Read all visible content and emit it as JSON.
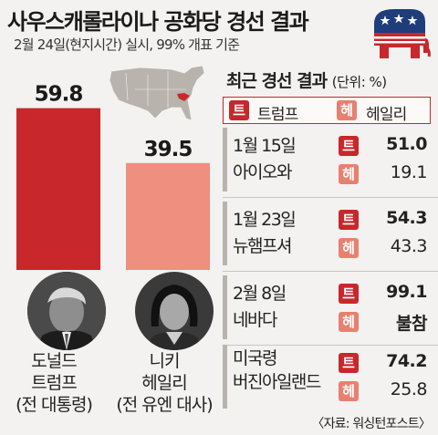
{
  "header": {
    "title": "사우스캐롤라이나 공화당 경선 결과",
    "subtitle": "2월 24일(현지시간) 실시, 99% 개표 기준",
    "logo_icon": "republican-elephant-icon"
  },
  "chart_data": {
    "type": "bar",
    "categories": [
      "도널드 트럼프",
      "니키 헤일리"
    ],
    "values": [
      59.8,
      39.5
    ],
    "value_labels": [
      "59.8",
      "39.5"
    ],
    "colors": [
      "#c8272c",
      "#ee8f7f"
    ],
    "ylim": [
      0,
      60
    ]
  },
  "map": {
    "icon": "us-map-south-carolina-icon",
    "highlight_color": "#c8272c"
  },
  "candidates": [
    {
      "name_line1": "도널드",
      "name_line2": "트럼프",
      "name_line3": "(전 대통령)"
    },
    {
      "name_line1": "니키",
      "name_line2": "헤일리",
      "name_line3": "(전 유엔 대사)"
    }
  ],
  "panel": {
    "title": "최근 경선 결과",
    "unit": "(단위: %)",
    "legend_trump_badge": "트",
    "legend_trump": "트럼프",
    "legend_haley_badge": "헤",
    "legend_haley": "헤일리",
    "rows": [
      {
        "date": "1월 15일",
        "state": "아이오와",
        "trump_badge": "트",
        "trump": "51.0",
        "haley_badge": "헤",
        "haley": "19.1"
      },
      {
        "date": "1월 23일",
        "state": "뉴햄프셔",
        "trump_badge": "트",
        "trump": "54.3",
        "haley_badge": "헤",
        "haley": "43.3"
      },
      {
        "date": "2월 8일",
        "state": "네바다",
        "trump_badge": "트",
        "trump": "99.1",
        "haley_badge": "헤",
        "haley": "불참"
      },
      {
        "date": "",
        "state_line1": "미국령",
        "state_line2": "버진아일랜드",
        "trump_badge": "트",
        "trump": "74.2",
        "haley_badge": "헤",
        "haley": "25.8"
      }
    ]
  },
  "source": "〈자료: 워싱턴포스트〉",
  "colors": {
    "trump": "#c8272c",
    "haley": "#e88070",
    "background": "#f3f2f0"
  }
}
